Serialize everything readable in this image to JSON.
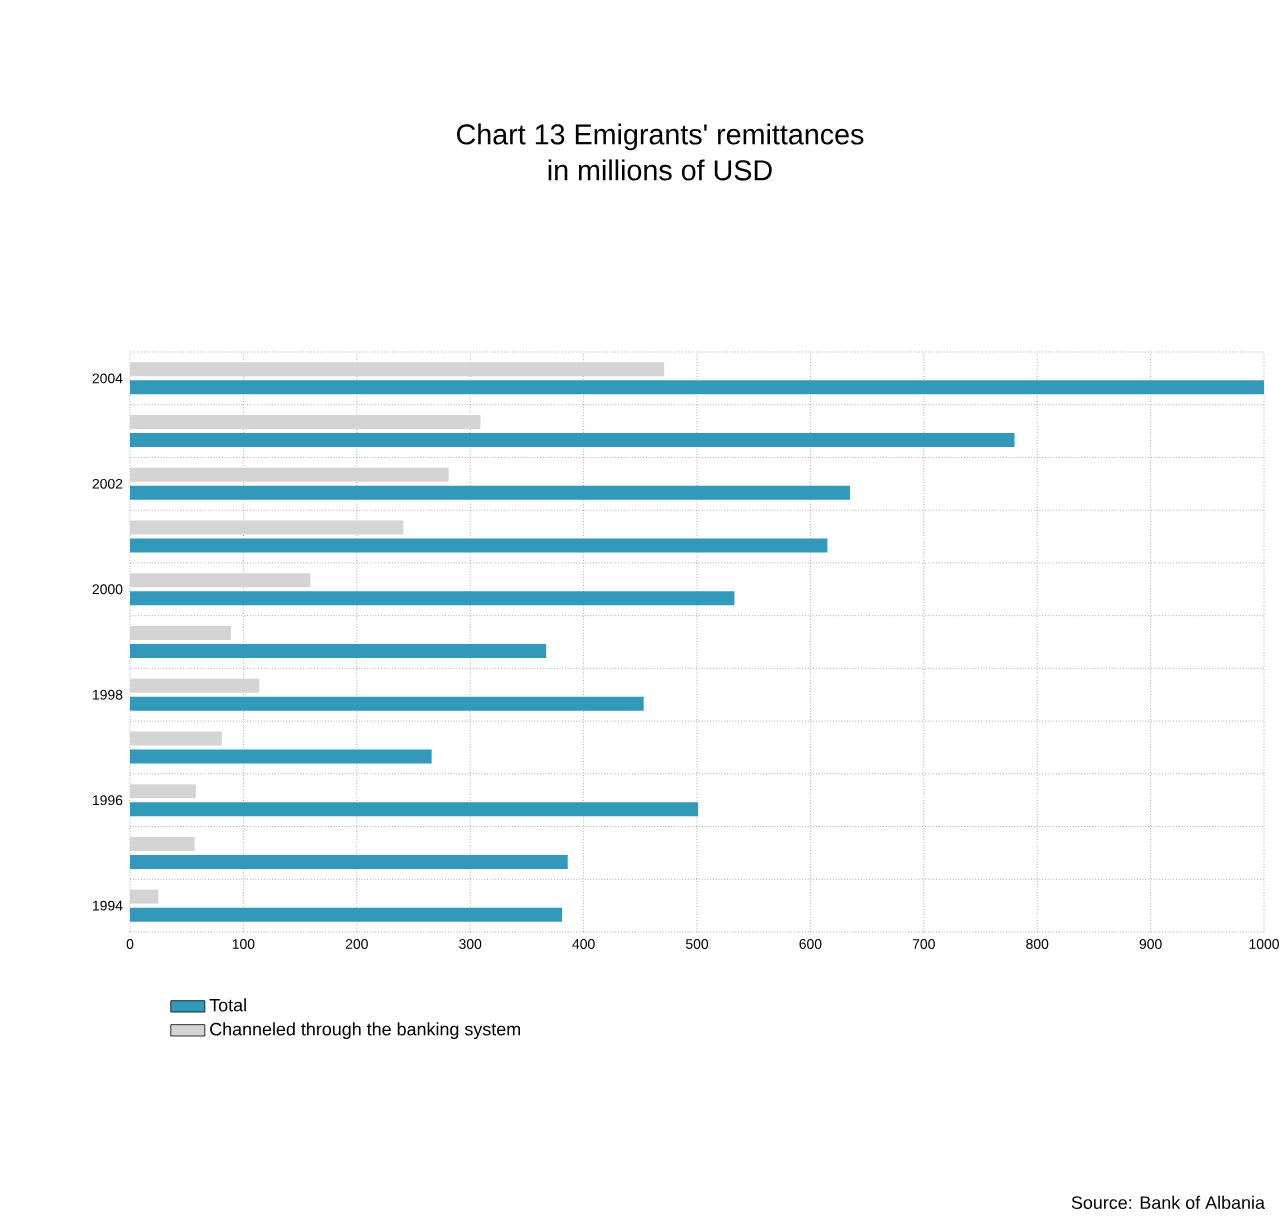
{
  "chart_data": {
    "type": "bar",
    "orientation": "horizontal",
    "title": "Chart 13 Emigrants' remittances",
    "subtitle": "in millions of USD",
    "categories": [
      "2004",
      null,
      "2002",
      null,
      "2000",
      null,
      "1998",
      null,
      "1996",
      null,
      "1994"
    ],
    "series": [
      {
        "name": "Total",
        "color": "#3399bb",
        "values": [
          1000,
          780,
          635,
          615,
          533,
          367,
          453,
          266,
          501,
          386,
          381
        ]
      },
      {
        "name": "Channeled through the banking system",
        "color": "#d4d4d4",
        "values": [
          471,
          309,
          281,
          241,
          159,
          89,
          114,
          81,
          58,
          57,
          25
        ]
      }
    ],
    "xlim": [
      0,
      1000
    ],
    "xticks": [
      0,
      100,
      200,
      300,
      400,
      500,
      600,
      700,
      800,
      900,
      1000
    ],
    "grid": true,
    "legend": "bottom",
    "annotations": [
      "Source: Bank of Albania"
    ]
  }
}
